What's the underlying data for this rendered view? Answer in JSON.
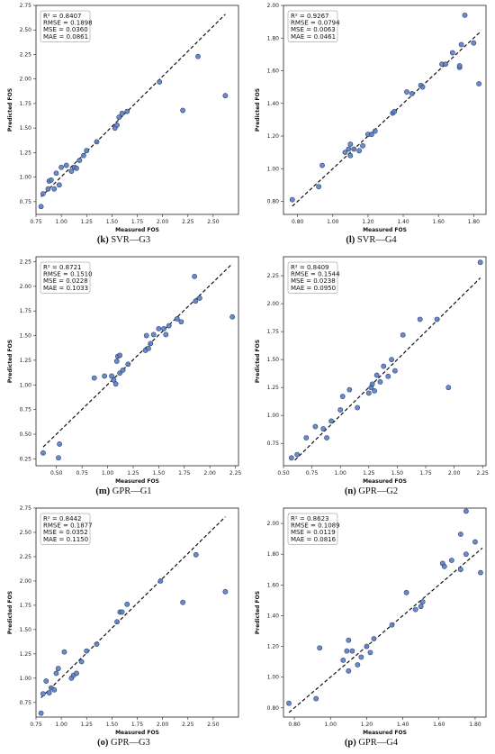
{
  "chart_data": [
    {
      "type": "scatter",
      "panel_letter": "(k)",
      "caption": "SVR—G3",
      "xlabel": "Measured FOS",
      "ylabel": "Predicted FOS",
      "xlim": [
        0.75,
        2.75
      ],
      "ylim": [
        0.62,
        2.75
      ],
      "xticks": [
        0.75,
        1.0,
        1.25,
        1.5,
        1.75,
        2.0,
        2.25,
        2.5
      ],
      "yticks": [
        0.75,
        1.0,
        1.25,
        1.5,
        1.75,
        2.0,
        2.25,
        2.5,
        2.75
      ],
      "tick_decimals": 2,
      "metrics": [
        "R² = 0.8407",
        "RMSE = 0.1898",
        "MSE = 0.0360",
        "MAE = 0.0861"
      ],
      "points": [
        [
          0.8,
          0.7
        ],
        [
          0.82,
          0.83
        ],
        [
          0.87,
          0.88
        ],
        [
          0.88,
          0.96
        ],
        [
          0.9,
          0.97
        ],
        [
          0.93,
          0.88
        ],
        [
          0.95,
          1.04
        ],
        [
          0.98,
          0.92
        ],
        [
          1.0,
          1.1
        ],
        [
          1.05,
          1.12
        ],
        [
          1.1,
          1.06
        ],
        [
          1.13,
          1.1
        ],
        [
          1.15,
          1.09
        ],
        [
          1.18,
          1.17
        ],
        [
          1.22,
          1.22
        ],
        [
          1.25,
          1.27
        ],
        [
          1.35,
          1.36
        ],
        [
          1.53,
          1.5
        ],
        [
          1.55,
          1.53
        ],
        [
          1.57,
          1.61
        ],
        [
          1.6,
          1.65
        ],
        [
          1.65,
          1.67
        ],
        [
          1.97,
          1.97
        ],
        [
          2.2,
          1.68
        ],
        [
          2.35,
          2.23
        ],
        [
          2.62,
          1.83
        ]
      ],
      "fit_line": [
        [
          0.8,
          0.8
        ],
        [
          2.62,
          2.66
        ]
      ]
    },
    {
      "type": "scatter",
      "panel_letter": "(l)",
      "caption": "SVR—G4",
      "xlabel": "Measured FOS",
      "ylabel": "Predicted FOS",
      "xlim": [
        0.72,
        1.87
      ],
      "ylim": [
        0.72,
        2.0
      ],
      "xticks": [
        0.8,
        1.0,
        1.2,
        1.4,
        1.6,
        1.8
      ],
      "yticks": [
        0.8,
        1.0,
        1.2,
        1.4,
        1.6,
        1.8,
        2.0
      ],
      "tick_decimals": 2,
      "metrics": [
        "R² = 0.9267",
        "RMSE = 0.0794",
        "MSE = 0.0063",
        "MAE = 0.0461"
      ],
      "points": [
        [
          0.77,
          0.81
        ],
        [
          0.92,
          0.89
        ],
        [
          0.94,
          1.02
        ],
        [
          1.07,
          1.1
        ],
        [
          1.09,
          1.12
        ],
        [
          1.1,
          1.08
        ],
        [
          1.1,
          1.15
        ],
        [
          1.12,
          1.12
        ],
        [
          1.15,
          1.11
        ],
        [
          1.17,
          1.14
        ],
        [
          1.2,
          1.21
        ],
        [
          1.22,
          1.21
        ],
        [
          1.24,
          1.23
        ],
        [
          1.34,
          1.34
        ],
        [
          1.35,
          1.35
        ],
        [
          1.42,
          1.47
        ],
        [
          1.45,
          1.46
        ],
        [
          1.5,
          1.51
        ],
        [
          1.51,
          1.5
        ],
        [
          1.62,
          1.64
        ],
        [
          1.64,
          1.64
        ],
        [
          1.68,
          1.71
        ],
        [
          1.72,
          1.62
        ],
        [
          1.72,
          1.63
        ],
        [
          1.73,
          1.76
        ],
        [
          1.75,
          1.94
        ],
        [
          1.8,
          1.77
        ],
        [
          1.83,
          1.52
        ]
      ],
      "fit_line": [
        [
          0.77,
          0.77
        ],
        [
          1.84,
          1.84
        ]
      ]
    },
    {
      "type": "scatter",
      "panel_letter": "(m)",
      "caption": "GPR—G1",
      "xlabel": "Measured FOS",
      "ylabel": "Predicted FOS",
      "xlim": [
        0.3,
        2.28
      ],
      "ylim": [
        0.18,
        2.3
      ],
      "xticks": [
        0.5,
        0.75,
        1.0,
        1.25,
        1.5,
        1.75,
        2.0,
        2.25
      ],
      "yticks": [
        0.25,
        0.5,
        0.75,
        1.0,
        1.25,
        1.5,
        1.75,
        2.0,
        2.25
      ],
      "tick_decimals": 2,
      "metrics": [
        "R² = 0.8721",
        "RMSE = 0.1510",
        "MSE = 0.0228",
        "MAE = 0.1033"
      ],
      "points": [
        [
          0.37,
          0.31
        ],
        [
          0.52,
          0.26
        ],
        [
          0.53,
          0.4
        ],
        [
          0.87,
          1.07
        ],
        [
          0.97,
          1.09
        ],
        [
          1.04,
          1.09
        ],
        [
          1.06,
          1.05
        ],
        [
          1.08,
          1.01
        ],
        [
          1.09,
          1.24
        ],
        [
          1.1,
          1.29
        ],
        [
          1.12,
          1.3
        ],
        [
          1.12,
          1.12
        ],
        [
          1.15,
          1.15
        ],
        [
          1.2,
          1.21
        ],
        [
          1.37,
          1.35
        ],
        [
          1.38,
          1.5
        ],
        [
          1.4,
          1.37
        ],
        [
          1.42,
          1.42
        ],
        [
          1.45,
          1.51
        ],
        [
          1.5,
          1.57
        ],
        [
          1.55,
          1.57
        ],
        [
          1.57,
          1.51
        ],
        [
          1.6,
          1.6
        ],
        [
          1.68,
          1.67
        ],
        [
          1.72,
          1.64
        ],
        [
          1.85,
          2.1
        ],
        [
          1.86,
          1.85
        ],
        [
          1.9,
          1.88
        ],
        [
          2.22,
          1.69
        ]
      ],
      "fit_line": [
        [
          0.37,
          0.37
        ],
        [
          2.22,
          2.23
        ]
      ]
    },
    {
      "type": "scatter",
      "panel_letter": "(n)",
      "caption": "GPR—G2",
      "xlabel": "Measured FOS",
      "ylabel": "Predicted FOS",
      "xlim": [
        0.5,
        2.28
      ],
      "ylim": [
        0.55,
        2.42
      ],
      "xticks": [
        0.5,
        0.75,
        1.0,
        1.25,
        1.5,
        1.75,
        2.0,
        2.25
      ],
      "yticks": [
        0.75,
        1.0,
        1.25,
        1.5,
        1.75,
        2.0,
        2.25
      ],
      "tick_decimals": 2,
      "metrics": [
        "R² = 0.8409",
        "RMSE = 0.1544",
        "MSE = 0.0238",
        "MAE = 0.0950"
      ],
      "points": [
        [
          0.57,
          0.62
        ],
        [
          0.62,
          0.65
        ],
        [
          0.7,
          0.8
        ],
        [
          0.78,
          0.9
        ],
        [
          0.85,
          0.88
        ],
        [
          0.88,
          0.8
        ],
        [
          0.92,
          0.95
        ],
        [
          1.0,
          1.05
        ],
        [
          1.02,
          1.17
        ],
        [
          1.08,
          1.23
        ],
        [
          1.15,
          1.07
        ],
        [
          1.25,
          1.2
        ],
        [
          1.27,
          1.25
        ],
        [
          1.28,
          1.28
        ],
        [
          1.3,
          1.22
        ],
        [
          1.32,
          1.36
        ],
        [
          1.35,
          1.3
        ],
        [
          1.38,
          1.44
        ],
        [
          1.42,
          1.35
        ],
        [
          1.45,
          1.5
        ],
        [
          1.48,
          1.4
        ],
        [
          1.55,
          1.72
        ],
        [
          1.7,
          1.86
        ],
        [
          1.85,
          1.86
        ],
        [
          1.95,
          1.25
        ],
        [
          2.23,
          2.37
        ]
      ],
      "fit_line": [
        [
          0.6,
          0.6
        ],
        [
          2.23,
          2.23
        ]
      ]
    },
    {
      "type": "scatter",
      "panel_letter": "(o)",
      "caption": "GPR—G3",
      "xlabel": "Measured FOS",
      "ylabel": "Predicted FOS",
      "xlim": [
        0.75,
        2.75
      ],
      "ylim": [
        0.6,
        2.75
      ],
      "xticks": [
        0.75,
        1.0,
        1.25,
        1.5,
        1.75,
        2.0,
        2.25,
        2.5
      ],
      "yticks": [
        0.75,
        1.0,
        1.25,
        1.5,
        1.75,
        2.0,
        2.25,
        2.5,
        2.75
      ],
      "tick_decimals": 2,
      "metrics": [
        "R² = 0.8442",
        "RMSE = 0.1877",
        "MSE = 0.0352",
        "MAE = 0.1150"
      ],
      "points": [
        [
          0.8,
          0.64
        ],
        [
          0.82,
          0.84
        ],
        [
          0.85,
          0.97
        ],
        [
          0.88,
          0.85
        ],
        [
          0.9,
          0.9
        ],
        [
          0.93,
          0.88
        ],
        [
          0.95,
          1.05
        ],
        [
          0.97,
          1.1
        ],
        [
          1.03,
          1.27
        ],
        [
          1.1,
          1.0
        ],
        [
          1.12,
          1.03
        ],
        [
          1.15,
          1.05
        ],
        [
          1.2,
          1.17
        ],
        [
          1.25,
          1.28
        ],
        [
          1.35,
          1.35
        ],
        [
          1.55,
          1.58
        ],
        [
          1.58,
          1.68
        ],
        [
          1.6,
          1.68
        ],
        [
          1.65,
          1.76
        ],
        [
          1.98,
          2.0
        ],
        [
          2.2,
          1.78
        ],
        [
          2.33,
          2.27
        ],
        [
          2.62,
          1.89
        ]
      ],
      "fit_line": [
        [
          0.8,
          0.8
        ],
        [
          2.62,
          2.66
        ]
      ]
    },
    {
      "type": "scatter",
      "panel_letter": "(p)",
      "caption": "GPR—G4",
      "xlabel": "Measured FOS",
      "ylabel": "Predicted FOS",
      "xlim": [
        0.74,
        1.86
      ],
      "ylim": [
        0.74,
        2.1
      ],
      "xticks": [
        0.8,
        1.0,
        1.2,
        1.4,
        1.6,
        1.8
      ],
      "yticks": [
        0.8,
        1.0,
        1.2,
        1.4,
        1.6,
        1.8,
        2.0
      ],
      "tick_decimals": 2,
      "metrics": [
        "R² = 0.8623",
        "RMSE = 0.1089",
        "MSE = 0.0119",
        "MAE = 0.0816"
      ],
      "points": [
        [
          0.77,
          0.83
        ],
        [
          0.92,
          0.86
        ],
        [
          0.94,
          1.19
        ],
        [
          1.07,
          1.11
        ],
        [
          1.09,
          1.17
        ],
        [
          1.1,
          1.04
        ],
        [
          1.1,
          1.24
        ],
        [
          1.12,
          1.17
        ],
        [
          1.15,
          1.08
        ],
        [
          1.17,
          1.13
        ],
        [
          1.2,
          1.2
        ],
        [
          1.22,
          1.16
        ],
        [
          1.24,
          1.25
        ],
        [
          1.34,
          1.34
        ],
        [
          1.42,
          1.55
        ],
        [
          1.47,
          1.44
        ],
        [
          1.5,
          1.46
        ],
        [
          1.51,
          1.49
        ],
        [
          1.62,
          1.74
        ],
        [
          1.63,
          1.72
        ],
        [
          1.67,
          1.76
        ],
        [
          1.72,
          1.7
        ],
        [
          1.72,
          1.93
        ],
        [
          1.75,
          2.08
        ],
        [
          1.8,
          1.88
        ],
        [
          1.83,
          1.68
        ],
        [
          1.75,
          1.8
        ]
      ],
      "fit_line": [
        [
          0.77,
          0.77
        ],
        [
          1.84,
          1.84
        ]
      ]
    }
  ],
  "style": {
    "marker_fill": "#5b7fc4",
    "marker_stroke": "#2c3f6e",
    "fit_line_color": "#111111"
  }
}
